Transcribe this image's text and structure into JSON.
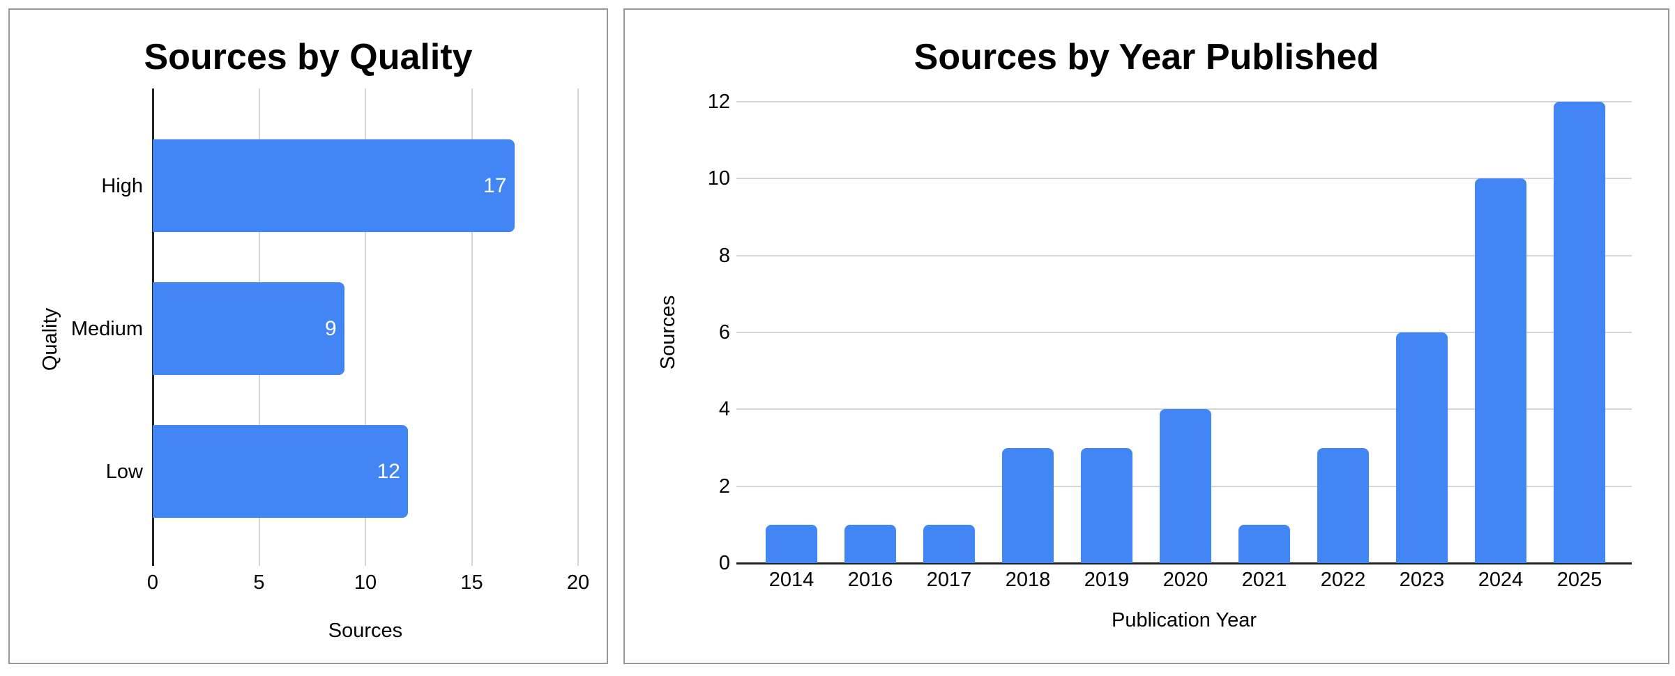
{
  "charts": {
    "quality": {
      "title": "Sources by Quality",
      "xlabel": "Sources",
      "ylabel": "Quality"
    },
    "year": {
      "title": "Sources by Year Published",
      "xlabel": "Publication Year",
      "ylabel": "Sources"
    }
  },
  "chart_data": [
    {
      "type": "bar",
      "orientation": "horizontal",
      "title": "Sources by Quality",
      "categories": [
        "High",
        "Medium",
        "Low"
      ],
      "values": [
        17,
        9,
        12
      ],
      "xlabel": "Sources",
      "ylabel": "Quality",
      "xlim": [
        0,
        20
      ],
      "xticks": [
        0,
        5,
        10,
        15,
        20
      ],
      "value_labels": true,
      "grid": true,
      "legend": "none"
    },
    {
      "type": "bar",
      "orientation": "vertical",
      "title": "Sources by Year Published",
      "categories": [
        "2014",
        "2016",
        "2017",
        "2018",
        "2019",
        "2020",
        "2021",
        "2022",
        "2023",
        "2024",
        "2025"
      ],
      "values": [
        1,
        1,
        1,
        3,
        3,
        4,
        1,
        3,
        6,
        10,
        12
      ],
      "xlabel": "Publication Year",
      "ylabel": "Sources",
      "ylim": [
        0,
        12
      ],
      "yticks": [
        0,
        2,
        4,
        6,
        8,
        10,
        12
      ],
      "value_labels": false,
      "grid": true,
      "legend": "none"
    }
  ],
  "colors": {
    "bar": "#4285f4",
    "gridline": "#d5d5d5",
    "axis": "#222222",
    "panel_border": "#999999",
    "value_label_text": "#ffffff",
    "text": "#000000"
  }
}
